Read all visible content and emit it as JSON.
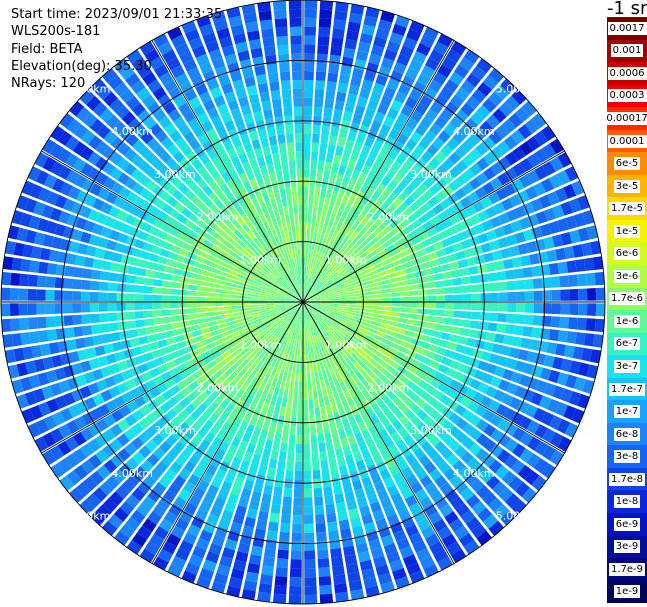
{
  "header": {
    "start_time": "Start time: 2023/09/01 21:33:35",
    "instrument": "WLS200s-181",
    "field": "Field: BETA",
    "elevation": "Elevation(deg): 35.30",
    "nrays": "NRays: 120"
  },
  "legend": {
    "title": "-1 sr",
    "entries": [
      {
        "label": "0.0017",
        "color": "#7a0000"
      },
      {
        "label": "0.001",
        "color": "#a10000"
      },
      {
        "label": "0.0006",
        "color": "#c80000"
      },
      {
        "label": "0.0003",
        "color": "#f00000"
      },
      {
        "label": "0.00017",
        "color": "#ff2a00"
      },
      {
        "label": "0.0001",
        "color": "#ff5a00"
      },
      {
        "label": "6e-5",
        "color": "#ff8c00"
      },
      {
        "label": "3e-5",
        "color": "#ffb400"
      },
      {
        "label": "1.7e-5",
        "color": "#ffd800"
      },
      {
        "label": "1e-5",
        "color": "#f4f400"
      },
      {
        "label": "6e-6",
        "color": "#d4fa1c"
      },
      {
        "label": "3e-6",
        "color": "#b0fb44"
      },
      {
        "label": "1.7e-6",
        "color": "#8afc6a"
      },
      {
        "label": "1e-6",
        "color": "#5efa96"
      },
      {
        "label": "6e-7",
        "color": "#34f4c4"
      },
      {
        "label": "3e-7",
        "color": "#18e2ec"
      },
      {
        "label": "1.7e-7",
        "color": "#14c2f8"
      },
      {
        "label": "1e-7",
        "color": "#1aa2fa"
      },
      {
        "label": "6e-8",
        "color": "#1c84f8"
      },
      {
        "label": "3e-8",
        "color": "#1664f2"
      },
      {
        "label": "1.7e-8",
        "color": "#0e44e8"
      },
      {
        "label": "1e-8",
        "color": "#0828dc"
      },
      {
        "label": "6e-9",
        "color": "#0414c2"
      },
      {
        "label": "3e-9",
        "color": "#020c9c"
      },
      {
        "label": "1.7e-9",
        "color": "#00067a"
      },
      {
        "label": "1e-9",
        "color": "#000458"
      }
    ]
  },
  "chart_data": {
    "type": "heatmap",
    "projection": "polar",
    "field": "BETA",
    "n_rays": 120,
    "r_max_km": 5.0,
    "range_rings_km": [
      1,
      2,
      3,
      4,
      5
    ],
    "ring_labels": [
      "1.00km",
      "2.00km",
      "3.00km",
      "4.00km",
      "5.00km"
    ],
    "radial_lines_every_deg": 30,
    "value_profile": {
      "range_km": [
        0,
        0.5,
        1.0,
        1.5,
        2.0,
        2.5,
        3.0,
        3.5,
        4.0,
        4.5,
        5.0
      ],
      "approx_beta_sr-1_m-1": [
        1e-06,
        1.3e-06,
        1.5e-06,
        1.4e-06,
        1e-06,
        5e-07,
        3e-07,
        1.5e-07,
        6e-08,
        3e-08,
        2e-08
      ]
    }
  }
}
